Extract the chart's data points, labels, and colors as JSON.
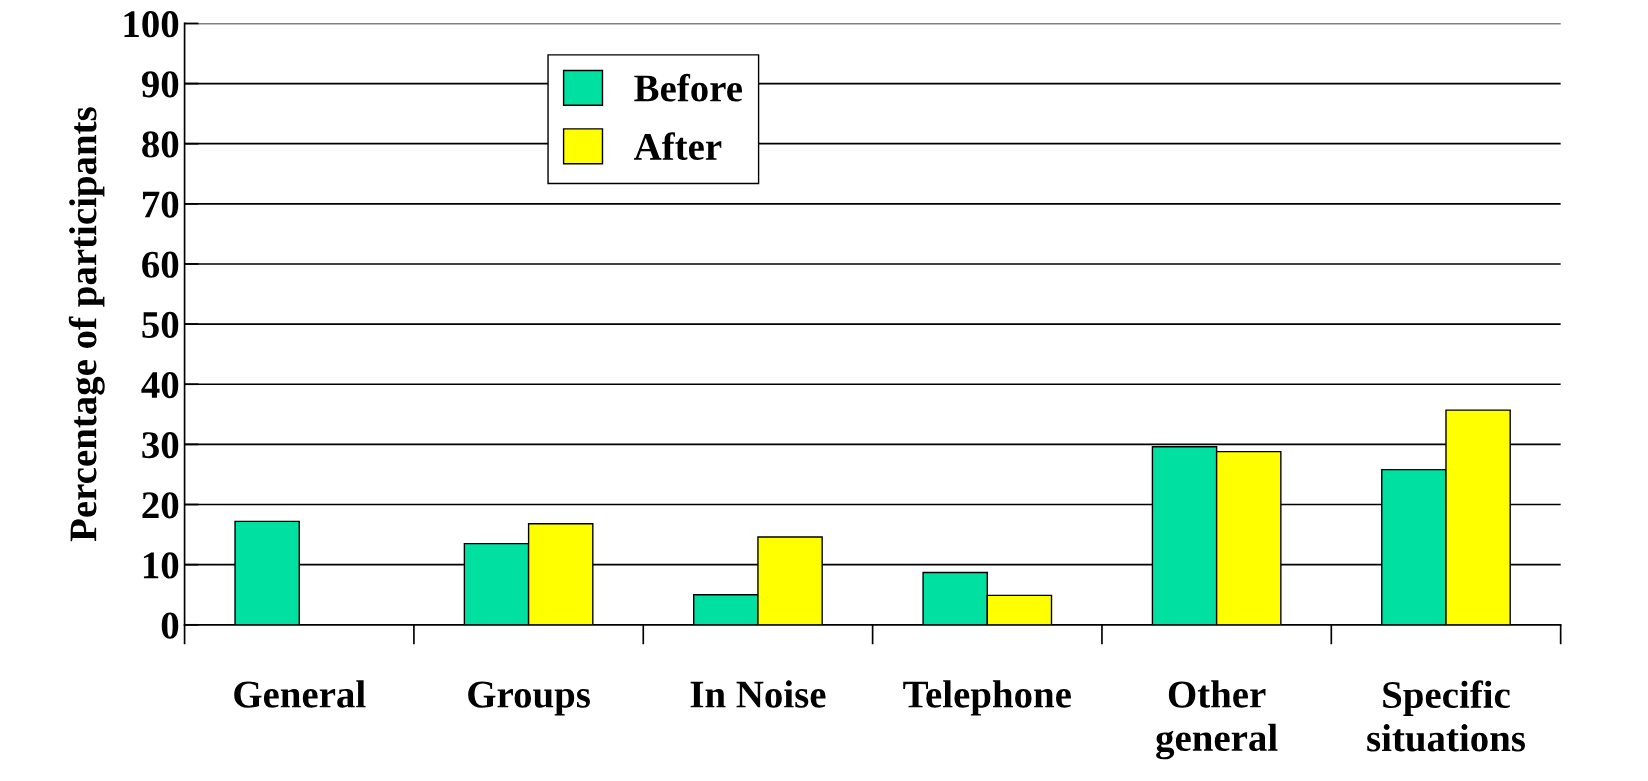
{
  "chart_data": {
    "type": "bar",
    "ylabel": "Percentage of participants",
    "categories": [
      "General",
      "Groups",
      "In Noise",
      "Telephone",
      "Other\ngeneral",
      "Specific\nsituations"
    ],
    "series": [
      {
        "name": "Before",
        "color": "#00e0a0",
        "values": [
          17.2,
          13.5,
          5.0,
          8.7,
          29.6,
          25.8
        ]
      },
      {
        "name": "After",
        "color": "#ffff00",
        "values": [
          null,
          16.8,
          14.6,
          4.9,
          28.8,
          35.7
        ]
      }
    ],
    "ylim": [
      0,
      100
    ],
    "yticks": [
      0,
      10,
      20,
      30,
      40,
      50,
      60,
      70,
      80,
      90,
      100
    ],
    "grid": "y",
    "legend": "top left"
  }
}
